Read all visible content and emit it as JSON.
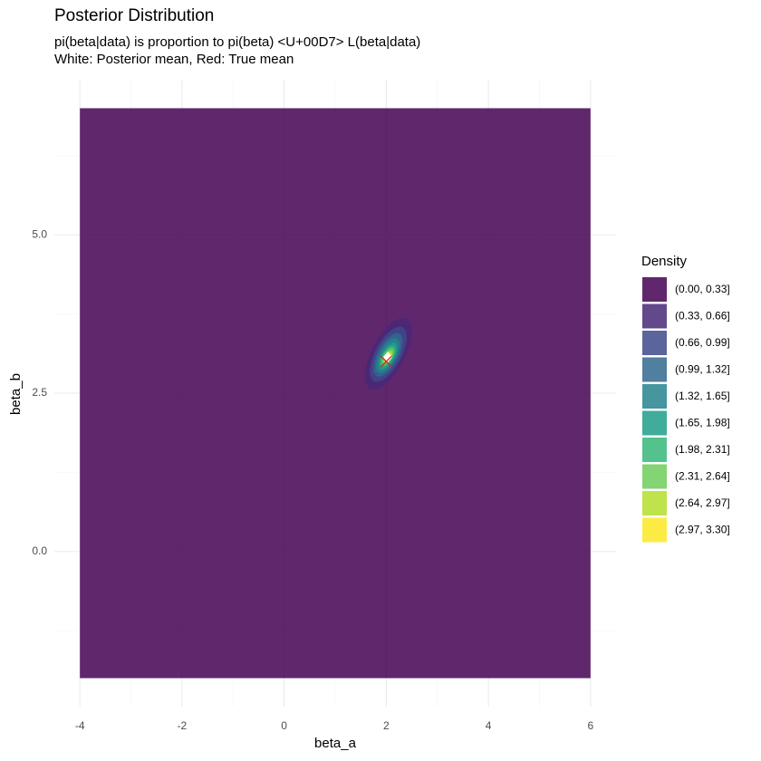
{
  "chart_data": {
    "type": "contour",
    "title": "Posterior Distribution",
    "subtitle": [
      "pi(beta|data) is proportion to pi(beta) <U+00D7> L(beta|data)",
      "White: Posterior mean, Red: True mean"
    ],
    "x_label": "beta_a",
    "y_label": "beta_b",
    "xlim": [
      -4.5,
      6.5
    ],
    "ylim": [
      -2.45,
      7.45
    ],
    "xticks": [
      -4,
      -2,
      0,
      2,
      4,
      6
    ],
    "yticks": [
      {
        "value": 0,
        "label": "0.0"
      },
      {
        "value": 2.5,
        "label": "2.5"
      },
      {
        "value": 5,
        "label": "5.0"
      }
    ],
    "x_minor_ticks": [
      -3,
      -1,
      1,
      3,
      5
    ],
    "y_minor_ticks": [
      -1.25,
      1.25,
      3.75,
      6.25
    ],
    "grid": true,
    "legend_title": "Density",
    "legend_position": "right",
    "alpha": 0.85,
    "levels": [
      {
        "label": "(0.00, 0.33]",
        "color": "#440154",
        "x_span": [
          -4,
          6
        ],
        "y_span": [
          -2,
          7
        ]
      },
      {
        "label": "(0.33, 0.66]",
        "color": "#482878",
        "x_span": [
          1.58,
          2.5
        ],
        "y_span": [
          2.56,
          3.69
        ]
      },
      {
        "label": "(0.66, 0.99]",
        "color": "#3E4A89",
        "x_span": [
          1.68,
          2.4
        ],
        "y_span": [
          2.68,
          3.55
        ]
      },
      {
        "label": "(0.99, 1.32]",
        "color": "#31688E",
        "x_span": [
          1.75,
          2.32
        ],
        "y_span": [
          2.76,
          3.45
        ]
      },
      {
        "label": "(1.32, 1.65]",
        "color": "#26828E",
        "x_span": [
          1.8,
          2.26
        ],
        "y_span": [
          2.82,
          3.37
        ]
      },
      {
        "label": "(1.65, 1.98]",
        "color": "#1F9E89",
        "x_span": [
          1.85,
          2.22
        ],
        "y_span": [
          2.87,
          3.3
        ]
      },
      {
        "label": "(1.98, 2.31]",
        "color": "#35B779",
        "x_span": [
          1.88,
          2.18
        ],
        "y_span": [
          2.91,
          3.25
        ]
      },
      {
        "label": "(2.31, 2.64]",
        "color": "#6DCD59",
        "x_span": [
          1.91,
          2.15
        ],
        "y_span": [
          2.95,
          3.21
        ]
      },
      {
        "label": "(2.64, 2.97]",
        "color": "#B4DE2C",
        "x_span": [
          1.94,
          2.12
        ],
        "y_span": [
          2.98,
          3.17
        ]
      },
      {
        "label": "(2.97, 3.30]",
        "color": "#FDE725",
        "x_span": [
          1.97,
          2.09
        ],
        "y_span": [
          3.01,
          3.13
        ]
      }
    ],
    "posterior_mean": {
      "x": 2.03,
      "y": 3.07,
      "color": "#ffffff"
    },
    "true_mean": {
      "x": 2.0,
      "y": 3.0,
      "color": "#e41a1c"
    }
  }
}
